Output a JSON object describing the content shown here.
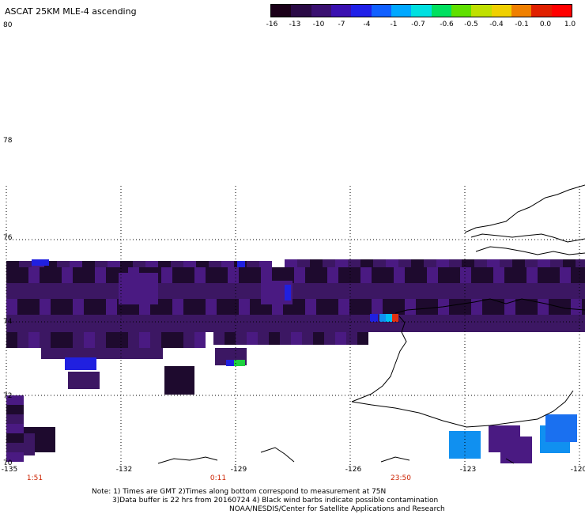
{
  "title": "ASCAT 25KM MLE-4 ascending",
  "colorbar": {
    "labels": [
      "-16",
      "-13",
      "-10",
      "-7",
      "-4",
      "-1",
      "-0.7",
      "-0.6",
      "-0.5",
      "-0.4",
      "-0.1",
      "0.0",
      "1.0"
    ],
    "colors": [
      "#1a0018",
      "#2a0a45",
      "#3a1070",
      "#3a10b0",
      "#2020e8",
      "#1060ff",
      "#00a8ff",
      "#00e0e0",
      "#00e060",
      "#60e000",
      "#c0e000",
      "#f0d000",
      "#f08000",
      "#e02000",
      "#ff0000"
    ]
  },
  "lat_labels": [
    "80",
    "78",
    "76",
    "74",
    "72",
    "70"
  ],
  "lon_labels": [
    "-135",
    "-132",
    "-129",
    "-126",
    "-123",
    "-120"
  ],
  "time_labels": [
    "1:51",
    "0:11",
    "23:50"
  ],
  "note": {
    "line1": "Note: 1) Times are GMT 2)Times along bottom correspond to measurement at 75N",
    "line2": "3)Data buffer is 22 hrs from 20160724 4) Black wind barbs indicate possible contamination",
    "line3": "NOAA/NESDIS/Center for Satellite Applications and Research"
  },
  "palette": {
    "dark": "#1e0a2e",
    "purple": "#3c1763",
    "violet": "#4a1a82",
    "blue": "#2020e0",
    "sky": "#1090f0",
    "cyan": "#00c0f0",
    "green": "#20d040",
    "red": "#e03010"
  }
}
